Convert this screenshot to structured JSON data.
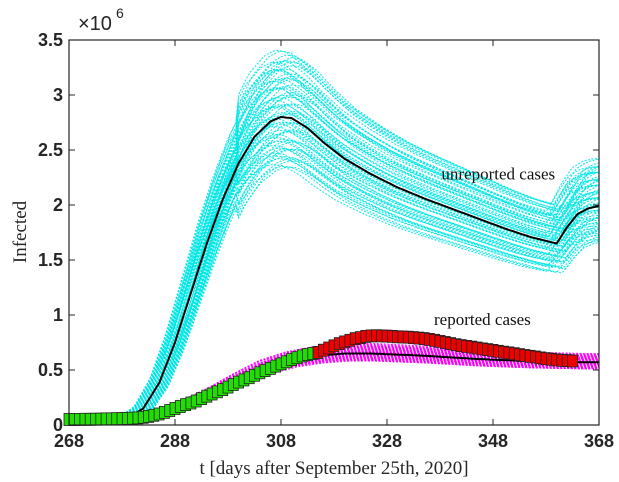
{
  "chart_data": {
    "type": "line",
    "title": "",
    "xlabel": "t [days after September 25th, 2020]",
    "ylabel": "Infected",
    "xlim": [
      268,
      368
    ],
    "ylim": [
      0,
      3500000
    ],
    "y_exponent_label": "×10",
    "y_exponent": "6",
    "xticks": [
      268,
      288,
      308,
      328,
      348,
      368
    ],
    "xtick_labels": [
      "268",
      "288",
      "308",
      "328",
      "348",
      "368"
    ],
    "yticks": [
      0,
      500000,
      1000000,
      1500000,
      2000000,
      2500000,
      3000000,
      3500000
    ],
    "ytick_labels": [
      "0",
      "0.5",
      "1",
      "1.5",
      "2",
      "2.5",
      "3",
      "3.5"
    ],
    "grid": false,
    "annotations": [
      {
        "text": "unreported cases",
        "x": 349,
        "y": 2230000
      },
      {
        "text": "reported cases",
        "x": 346,
        "y": 910000
      }
    ],
    "colors": {
      "unreported_ensemble": "#00e5e5",
      "reported_ensemble": "#ff00ff",
      "mean": "#000000",
      "data_early": "#22dd00",
      "data_late": "#ee0000",
      "marker_edge": "#222222"
    },
    "unreported_mean": {
      "x": [
        268,
        276,
        279,
        282,
        285,
        288,
        291,
        294,
        297,
        300,
        303,
        306,
        308,
        310,
        313,
        316,
        320,
        325,
        330,
        335,
        340,
        345,
        350,
        355,
        360,
        362,
        364,
        366,
        368
      ],
      "y": [
        0,
        20000,
        60000,
        150000,
        380000,
        750000,
        1200000,
        1650000,
        2050000,
        2380000,
        2620000,
        2760000,
        2800000,
        2790000,
        2700000,
        2570000,
        2420000,
        2280000,
        2160000,
        2060000,
        1970000,
        1880000,
        1790000,
        1710000,
        1650000,
        1800000,
        1920000,
        1970000,
        1990000
      ]
    },
    "reported_mean": {
      "x": [
        268,
        276,
        280,
        285,
        290,
        295,
        300,
        305,
        310,
        315,
        320,
        325,
        330,
        335,
        340,
        345,
        350,
        355,
        360,
        365,
        368
      ],
      "y": [
        50000,
        60000,
        80000,
        120000,
        190000,
        290000,
        410000,
        520000,
        590000,
        630000,
        650000,
        650000,
        640000,
        630000,
        615000,
        600000,
        590000,
        580000,
        575000,
        570000,
        570000
      ]
    },
    "reported_data_early": {
      "x": [
        268,
        269,
        270,
        271,
        272,
        273,
        274,
        275,
        276,
        277,
        278,
        279,
        280,
        281,
        282,
        283,
        284,
        285,
        286,
        287,
        288,
        289,
        290,
        291,
        292,
        293,
        294,
        295,
        296,
        297,
        298,
        299,
        300,
        301,
        302,
        303,
        304,
        305,
        306,
        307,
        308,
        309,
        310,
        311,
        312,
        313,
        314,
        315
      ],
      "y": [
        50000,
        50000,
        51000,
        52000,
        52000,
        53000,
        54000,
        55000,
        56000,
        57000,
        58000,
        60000,
        62000,
        65000,
        70000,
        78000,
        88000,
        100000,
        115000,
        132000,
        150000,
        168000,
        185000,
        200000,
        218000,
        240000,
        262000,
        282000,
        302000,
        322000,
        345000,
        368000,
        390000,
        410000,
        430000,
        452000,
        475000,
        495000,
        515000,
        535000,
        555000,
        575000,
        595000,
        612000,
        628000,
        640000,
        650000,
        660000
      ]
    },
    "reported_data_late": {
      "x": [
        315,
        316,
        317,
        318,
        319,
        320,
        321,
        322,
        323,
        324,
        325,
        326,
        327,
        328,
        329,
        330,
        331,
        332,
        333,
        334,
        335,
        336,
        337,
        338,
        339,
        340,
        341,
        342,
        343,
        344,
        345,
        346,
        347,
        348,
        349,
        350,
        351,
        352,
        353,
        354,
        355,
        356,
        357,
        358,
        359,
        360,
        361,
        362,
        363
      ],
      "y": [
        660000,
        680000,
        700000,
        720000,
        740000,
        755000,
        770000,
        785000,
        795000,
        805000,
        810000,
        812000,
        810000,
        808000,
        805000,
        802000,
        800000,
        798000,
        795000,
        790000,
        785000,
        778000,
        770000,
        760000,
        750000,
        740000,
        730000,
        722000,
        715000,
        708000,
        700000,
        692000,
        685000,
        678000,
        670000,
        662000,
        655000,
        648000,
        640000,
        632000,
        625000,
        618000,
        610000,
        603000,
        598000,
        592000,
        588000,
        585000,
        582000
      ]
    }
  }
}
